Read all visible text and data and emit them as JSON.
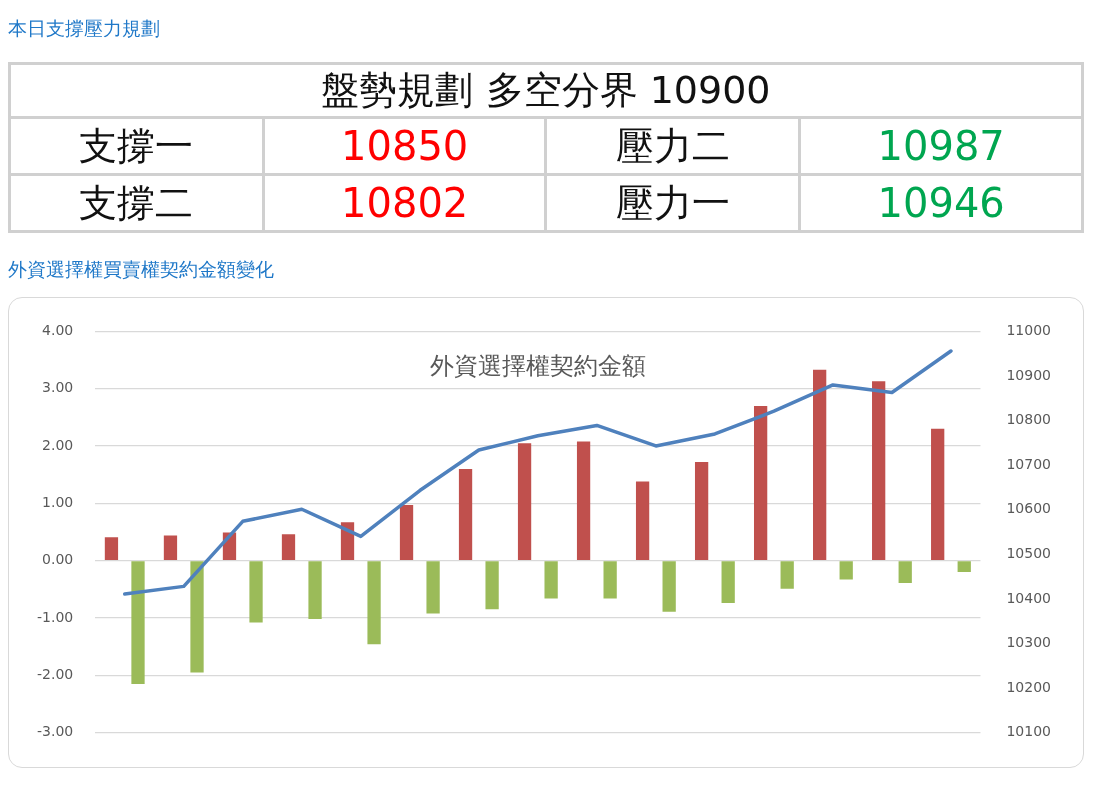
{
  "chart_data": [
    {
      "type": "other",
      "title": "本日支撐壓力規劃",
      "annotations": [
        "盤勢規劃 多空分界 10900",
        "支撐一",
        "10850",
        "壓力二",
        "10987",
        "支撐二",
        "10802",
        "壓力一",
        "10946"
      ]
    },
    {
      "type": "bar",
      "subtitle": "外資選擇權買賣權契約金額變化",
      "title": "外資選擇權契約金額",
      "categories": [
        null,
        null,
        null,
        null,
        null,
        null,
        null,
        null,
        null,
        null,
        null,
        null,
        null,
        null,
        null
      ],
      "series": [
        {
          "type": "bar",
          "color": "#c0504d",
          "values": [
            0.41,
            0.44,
            0.49,
            0.46,
            0.67,
            0.97,
            1.6,
            2.05,
            2.08,
            1.38,
            1.72,
            2.7,
            3.33,
            3.13,
            2.3
          ]
        },
        {
          "type": "bar",
          "color": "#9bbb59",
          "values": [
            -2.15,
            -1.95,
            -1.08,
            -1.02,
            -1.46,
            -0.92,
            -0.85,
            -0.66,
            -0.66,
            -0.89,
            -0.74,
            -0.49,
            -0.33,
            -0.39,
            -0.2
          ]
        },
        {
          "type": "line",
          "axis": "y2",
          "color": "#4f81bd",
          "values": [
            10411,
            10428,
            10574,
            10601,
            10540,
            10643,
            10734,
            10766,
            10789,
            10743,
            10770,
            10821,
            10880,
            10863,
            10956
          ]
        }
      ],
      "ylim": [
        -3,
        4
      ],
      "yticks": [
        {
          "value": -3,
          "label": "-3.00"
        },
        {
          "value": -2,
          "label": "-2.00"
        },
        {
          "value": -1,
          "label": "-1.00"
        },
        {
          "value": 0,
          "label": "0.00"
        },
        {
          "value": 1,
          "label": "1.00"
        },
        {
          "value": 2,
          "label": "2.00"
        },
        {
          "value": 3,
          "label": "3.00"
        },
        {
          "value": 4,
          "label": "4.00"
        }
      ],
      "y2lim": [
        10100,
        11000
      ],
      "y2ticks": [
        10100,
        10200,
        10300,
        10400,
        10500,
        10600,
        10700,
        10800,
        10900,
        11000
      ],
      "grid": "y",
      "legend": false,
      "tick_labels": "y",
      "marker": "none",
      "line_style": "solid"
    }
  ]
}
